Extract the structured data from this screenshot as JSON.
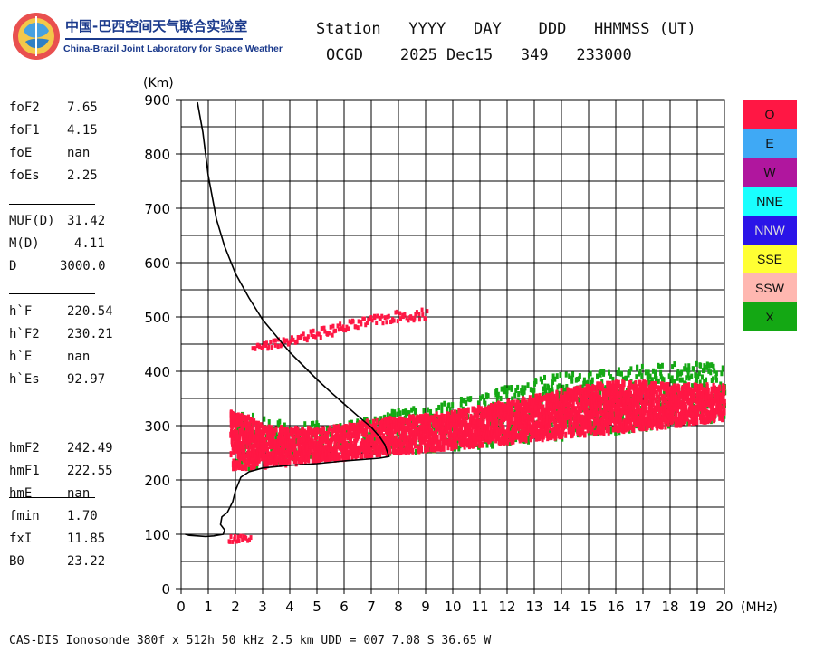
{
  "logo": {
    "name_cn": "中国-巴西空间天气联合实验室",
    "name_en": "China-Brazil Joint Laboratory for Space Weather"
  },
  "header": {
    "line1": "Station   YYYY   DAY    DDD   HHMMSS (UT)",
    "line2": "OCGD    2025 Dec15   349   233000"
  },
  "params": [
    [
      {
        "name": "foF2",
        "value": "7.65"
      },
      {
        "name": "foF1",
        "value": "4.15"
      },
      {
        "name": "foE",
        "value": "nan"
      },
      {
        "name": "foEs",
        "value": "2.25"
      }
    ],
    [
      {
        "name": "MUF(D)",
        "value": "31.42"
      },
      {
        "name": "M(D)",
        "value": "4.11"
      },
      {
        "name": "D",
        "value": "3000.0"
      }
    ],
    [
      {
        "name": "h`F",
        "value": "220.54"
      },
      {
        "name": "h`F2",
        "value": "230.21"
      },
      {
        "name": "h`E",
        "value": "nan"
      },
      {
        "name": "h`Es",
        "value": "92.97"
      }
    ],
    [
      {
        "name": "hmF2",
        "value": "242.49"
      },
      {
        "name": "hmF1",
        "value": "222.55"
      },
      {
        "name": "hmE",
        "value": "nan"
      }
    ],
    [
      {
        "name": "fmin",
        "value": "1.70"
      },
      {
        "name": "fxI",
        "value": "11.85"
      },
      {
        "name": "B0",
        "value": "23.22"
      }
    ]
  ],
  "legend": [
    {
      "label": "O",
      "color": "#ff1744"
    },
    {
      "label": "E",
      "color": "#3fa9f5"
    },
    {
      "label": "W",
      "color": "#b0169e"
    },
    {
      "label": "NNE",
      "color": "#19ffff"
    },
    {
      "label": "NNW",
      "color": "#2a14e8"
    },
    {
      "label": "SSE",
      "color": "#ffff33"
    },
    {
      "label": "SSW",
      "color": "#ffb7b0"
    },
    {
      "label": "X",
      "color": "#14a814"
    }
  ],
  "footer": "CAS-DIS Ionosonde 380f x 512h 50 kHz 2.5 km UDD = 007 7.08 S 36.65 W",
  "chart_data": {
    "type": "scatter",
    "title": "",
    "xlabel": "(MHz)",
    "ylabel": "(Km)",
    "xlim": [
      0,
      20
    ],
    "ylim": [
      0,
      900
    ],
    "grid": true,
    "x_ticks": [
      0,
      1,
      2,
      3,
      4,
      5,
      6,
      7,
      8,
      9,
      10,
      11,
      12,
      13,
      14,
      15,
      16,
      17,
      18,
      19,
      20
    ],
    "y_ticks": [
      0,
      100,
      200,
      300,
      400,
      500,
      600,
      700,
      800,
      900
    ],
    "series": [
      {
        "name": "profile",
        "kind": "line",
        "color": "#000000",
        "points": [
          [
            0.6,
            895
          ],
          [
            0.8,
            840
          ],
          [
            1.0,
            760
          ],
          [
            1.3,
            680
          ],
          [
            1.6,
            630
          ],
          [
            2.0,
            580
          ],
          [
            2.5,
            535
          ],
          [
            3.0,
            495
          ],
          [
            3.5,
            465
          ],
          [
            4.0,
            435
          ],
          [
            4.5,
            410
          ],
          [
            5.0,
            385
          ],
          [
            5.5,
            362
          ],
          [
            6.0,
            340
          ],
          [
            6.5,
            318
          ],
          [
            7.0,
            297
          ],
          [
            7.3,
            280
          ],
          [
            7.5,
            265
          ],
          [
            7.65,
            243
          ],
          [
            7.3,
            240
          ],
          [
            6.0,
            235
          ],
          [
            5.0,
            230
          ],
          [
            4.0,
            227
          ],
          [
            3.0,
            222
          ],
          [
            2.5,
            215
          ],
          [
            2.2,
            205
          ],
          [
            2.0,
            180
          ],
          [
            1.9,
            160
          ],
          [
            1.7,
            140
          ],
          [
            1.5,
            132
          ],
          [
            1.45,
            118
          ],
          [
            1.6,
            108
          ],
          [
            1.55,
            100
          ],
          [
            1.2,
            97
          ],
          [
            0.9,
            96
          ],
          [
            0.6,
            97
          ],
          [
            0.3,
            98
          ],
          [
            0.15,
            100
          ]
        ]
      },
      {
        "name": "F-trace",
        "kind": "band",
        "color": "#ff1744",
        "x": [
          1.8,
          2.5,
          3,
          4,
          5,
          6,
          7,
          8,
          9,
          10,
          11,
          12,
          13,
          14,
          15,
          16,
          17,
          18,
          19,
          20
        ],
        "h_low": [
          225,
          228,
          230,
          235,
          240,
          245,
          250,
          255,
          260,
          265,
          270,
          275,
          280,
          285,
          290,
          295,
          300,
          305,
          312,
          318
        ],
        "h_high": [
          330,
          320,
          305,
          300,
          300,
          305,
          315,
          320,
          325,
          330,
          340,
          350,
          360,
          370,
          380,
          385,
          385,
          380,
          380,
          380
        ]
      },
      {
        "name": "multi-hop",
        "kind": "band",
        "color": "#ff1744",
        "x": [
          2.6,
          4.0,
          5.0,
          6.0,
          7.0,
          8.0,
          9.0
        ],
        "h_low": [
          440,
          455,
          465,
          475,
          490,
          495,
          500
        ],
        "h_high": [
          452,
          468,
          482,
          495,
          505,
          515,
          520
        ]
      },
      {
        "name": "Es-trace",
        "kind": "band",
        "color": "#ff1744",
        "x": [
          1.7,
          2.0,
          2.5
        ],
        "h_low": [
          90,
          90,
          92
        ],
        "h_high": [
          100,
          102,
          100
        ]
      },
      {
        "name": "X-echoes",
        "kind": "band",
        "color": "#14a814",
        "x": [
          2.0,
          4.0,
          6.0,
          8.0,
          10.0,
          12.0,
          14.0,
          16.0,
          18.0,
          20.0
        ],
        "h_low": [
          220,
          240,
          245,
          255,
          260,
          270,
          280,
          290,
          305,
          315
        ],
        "h_high": [
          330,
          310,
          310,
          335,
          350,
          380,
          400,
          410,
          420,
          420
        ]
      }
    ]
  }
}
